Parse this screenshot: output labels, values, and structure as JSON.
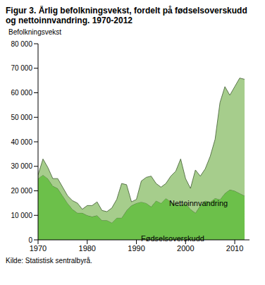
{
  "chart_data": {
    "type": "area",
    "title": "Figur 3. Årlig befolkningsvekst, fordelt på fødselsoverskudd og nettoinnvandring. 1970-2012",
    "y_label": "Befolkningsvekst",
    "source": "Kilde: Statistisk sentralbyrå.",
    "stacked": true,
    "grid": false,
    "x": [
      1970,
      1971,
      1972,
      1973,
      1974,
      1975,
      1976,
      1977,
      1978,
      1979,
      1980,
      1981,
      1982,
      1983,
      1984,
      1985,
      1986,
      1987,
      1988,
      1989,
      1990,
      1991,
      1992,
      1993,
      1994,
      1995,
      1996,
      1997,
      1998,
      1999,
      2000,
      2001,
      2002,
      2003,
      2004,
      2005,
      2006,
      2007,
      2008,
      2009,
      2010,
      2011,
      2012
    ],
    "series": [
      {
        "name": "Fødselsoverskudd",
        "color": "#6cc04a",
        "values": [
          25000,
          26500,
          25000,
          22000,
          21000,
          18000,
          15000,
          12500,
          11000,
          11000,
          10000,
          9500,
          10000,
          8000,
          8000,
          7000,
          9000,
          9000,
          12000,
          14000,
          15000,
          15500,
          15000,
          13500,
          16000,
          15000,
          17000,
          15500,
          14500,
          14000,
          15000,
          12500,
          11000,
          14000,
          16000,
          15500,
          17000,
          16500,
          19000,
          20500,
          20000,
          19000,
          18000
        ]
      },
      {
        "name": "Nettoinnvandring",
        "color": "#a6cd8c",
        "values": [
          1500,
          6500,
          4500,
          3000,
          4000,
          3500,
          3000,
          3500,
          4000,
          1500,
          4000,
          4500,
          5500,
          4000,
          3500,
          6000,
          7500,
          14000,
          10500,
          1500,
          1500,
          8500,
          10500,
          12500,
          7000,
          6500,
          6000,
          10500,
          13500,
          19000,
          10000,
          8500,
          17500,
          12000,
          13000,
          18500,
          24000,
          39500,
          43500,
          38500,
          42500,
          47000,
          47500
        ]
      }
    ],
    "xlim": [
      1970,
      2013
    ],
    "xticks": [
      1970,
      1980,
      1990,
      2000,
      2010
    ],
    "ylim": [
      0,
      80000
    ],
    "yticks": [
      0,
      {
        "value": 10000,
        "label": "10 000"
      },
      {
        "value": 20000,
        "label": "20 000"
      },
      {
        "value": 30000,
        "label": "30 000"
      },
      {
        "value": 40000,
        "label": "40 000"
      },
      {
        "value": 50000,
        "label": "50 000"
      },
      {
        "value": 60000,
        "label": "60 000"
      },
      {
        "value": 70000,
        "label": "70 000"
      },
      {
        "value": 80000,
        "label": "80 000"
      }
    ]
  }
}
